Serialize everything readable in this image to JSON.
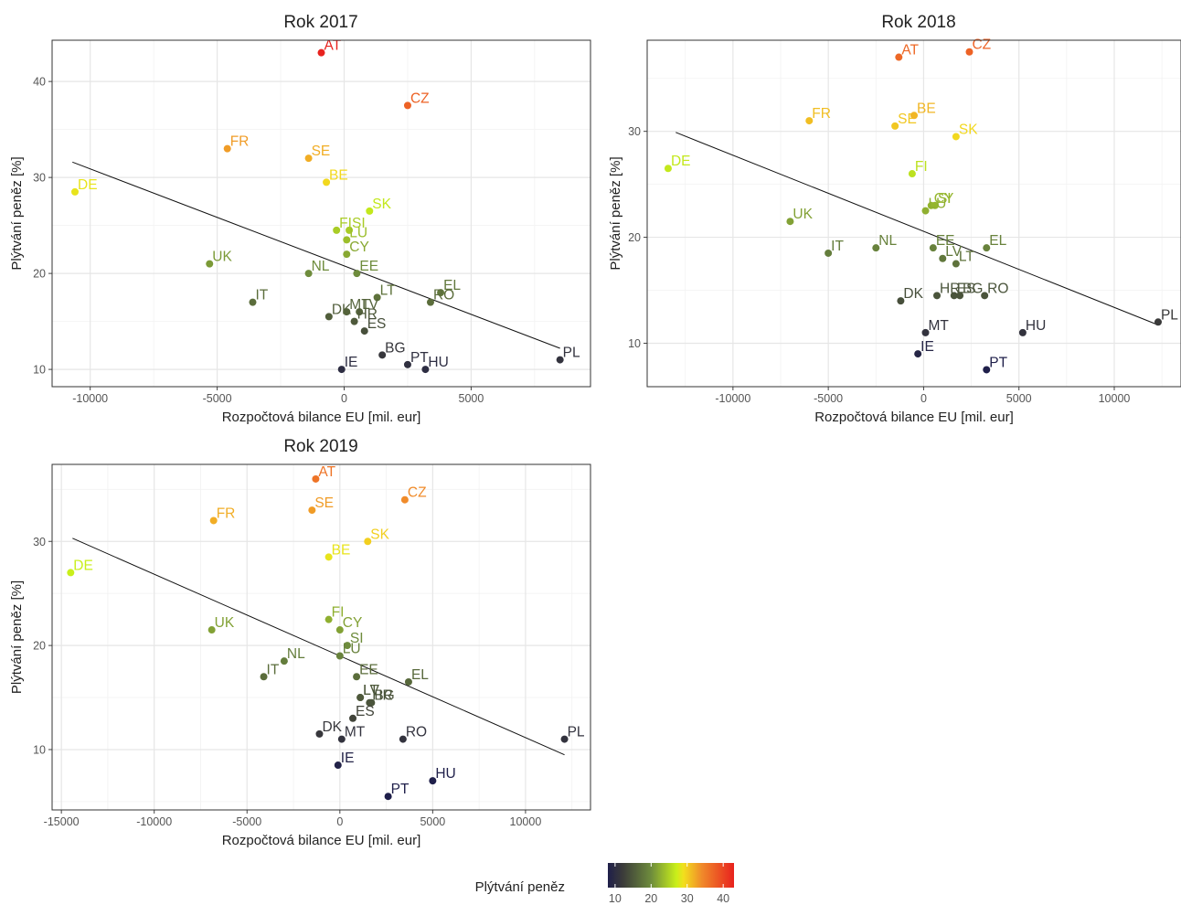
{
  "colorbar": {
    "title": "Plýtvání peněz",
    "ticks": [
      10,
      20,
      30,
      40
    ],
    "range": [
      8,
      43
    ],
    "stops": [
      {
        "v": 8,
        "c": "#1f1f4a"
      },
      {
        "v": 12,
        "c": "#3a3a3a"
      },
      {
        "v": 20,
        "c": "#6e8c3c"
      },
      {
        "v": 27,
        "c": "#c9ef1a"
      },
      {
        "v": 29,
        "c": "#f2e01d"
      },
      {
        "v": 34,
        "c": "#f08b2a"
      },
      {
        "v": 43,
        "c": "#e8221e"
      }
    ]
  },
  "chart_data": [
    {
      "type": "scatter",
      "title": "Rok 2017",
      "xlabel": "Rozpočtová bilance EU [mil. eur]",
      "ylabel": "Plýtvání peněz [%]",
      "xlim": [
        -11500,
        9700
      ],
      "ylim": [
        8.2,
        44.3
      ],
      "xticks": [
        -10000,
        -5000,
        0,
        5000
      ],
      "yticks": [
        10,
        20,
        30,
        40
      ],
      "regression": {
        "x1": -10700,
        "y1": 31.6,
        "x2": 8500,
        "y2": 12.2
      },
      "points": [
        {
          "label": "AT",
          "x": -900,
          "y": 43
        },
        {
          "label": "CZ",
          "x": 2500,
          "y": 37.5
        },
        {
          "label": "FR",
          "x": -4600,
          "y": 33
        },
        {
          "label": "SE",
          "x": -1400,
          "y": 32
        },
        {
          "label": "BE",
          "x": -700,
          "y": 29.5
        },
        {
          "label": "DE",
          "x": -10600,
          "y": 28.5
        },
        {
          "label": "SK",
          "x": 1000,
          "y": 26.5
        },
        {
          "label": "FI",
          "x": -300,
          "y": 24.5
        },
        {
          "label": "SI",
          "x": 200,
          "y": 24.5
        },
        {
          "label": "LU",
          "x": 100,
          "y": 23.5
        },
        {
          "label": "CY",
          "x": 100,
          "y": 22
        },
        {
          "label": "UK",
          "x": -5300,
          "y": 21
        },
        {
          "label": "NL",
          "x": -1400,
          "y": 20
        },
        {
          "label": "EE",
          "x": 500,
          "y": 20
        },
        {
          "label": "EL",
          "x": 3800,
          "y": 18
        },
        {
          "label": "RO",
          "x": 3400,
          "y": 17
        },
        {
          "label": "LT",
          "x": 1300,
          "y": 17.5
        },
        {
          "label": "IT",
          "x": -3600,
          "y": 17
        },
        {
          "label": "DK",
          "x": -600,
          "y": 15.5
        },
        {
          "label": "MT",
          "x": 100,
          "y": 16
        },
        {
          "label": "LV",
          "x": 600,
          "y": 16
        },
        {
          "label": "HR",
          "x": 400,
          "y": 15
        },
        {
          "label": "ES",
          "x": 800,
          "y": 14
        },
        {
          "label": "BG",
          "x": 1500,
          "y": 11.5
        },
        {
          "label": "PT",
          "x": 2500,
          "y": 10.5
        },
        {
          "label": "HU",
          "x": 3200,
          "y": 10
        },
        {
          "label": "IE",
          "x": -100,
          "y": 10
        },
        {
          "label": "PL",
          "x": 8500,
          "y": 11
        }
      ]
    },
    {
      "type": "scatter",
      "title": "Rok 2018",
      "xlabel": "Rozpočtová bilance EU [mil. eur]",
      "ylabel": "Plýtvání peněz [%]",
      "xlim": [
        -14500,
        13500
      ],
      "ylim": [
        5.9,
        38.6
      ],
      "xticks": [
        -10000,
        -5000,
        0,
        5000,
        10000
      ],
      "yticks": [
        10,
        20,
        30
      ],
      "regression": {
        "x1": -13000,
        "y1": 29.9,
        "x2": 12200,
        "y2": 11.8
      },
      "points": [
        {
          "label": "AT",
          "x": -1300,
          "y": 37
        },
        {
          "label": "CZ",
          "x": 2400,
          "y": 37.5
        },
        {
          "label": "FR",
          "x": -6000,
          "y": 31
        },
        {
          "label": "SE",
          "x": -1500,
          "y": 30.5
        },
        {
          "label": "BE",
          "x": -500,
          "y": 31.5
        },
        {
          "label": "SK",
          "x": 1700,
          "y": 29.5
        },
        {
          "label": "DE",
          "x": -13400,
          "y": 26.5
        },
        {
          "label": "FI",
          "x": -600,
          "y": 26
        },
        {
          "label": "SI",
          "x": 600,
          "y": 23
        },
        {
          "label": "CY",
          "x": 400,
          "y": 23
        },
        {
          "label": "LU",
          "x": 100,
          "y": 22.5
        },
        {
          "label": "UK",
          "x": -7000,
          "y": 21.5
        },
        {
          "label": "IT",
          "x": -5000,
          "y": 18.5
        },
        {
          "label": "NL",
          "x": -2500,
          "y": 19
        },
        {
          "label": "EE",
          "x": 500,
          "y": 19
        },
        {
          "label": "EL",
          "x": 3300,
          "y": 19
        },
        {
          "label": "LV",
          "x": 1000,
          "y": 18
        },
        {
          "label": "LT",
          "x": 1700,
          "y": 17.5
        },
        {
          "label": "DK",
          "x": -1200,
          "y": 14
        },
        {
          "label": "HR",
          "x": 700,
          "y": 14.5
        },
        {
          "label": "ES",
          "x": 1600,
          "y": 14.5
        },
        {
          "label": "BG",
          "x": 1900,
          "y": 14.5
        },
        {
          "label": "RO",
          "x": 3200,
          "y": 14.5
        },
        {
          "label": "MT",
          "x": 100,
          "y": 11
        },
        {
          "label": "HU",
          "x": 5200,
          "y": 11
        },
        {
          "label": "IE",
          "x": -300,
          "y": 9
        },
        {
          "label": "PT",
          "x": 3300,
          "y": 7.5
        },
        {
          "label": "PL",
          "x": 12300,
          "y": 12
        }
      ]
    },
    {
      "type": "scatter",
      "title": "Rok 2019",
      "xlabel": "Rozpočtová bilance EU [mil. eur]",
      "ylabel": "Plýtvání peněz [%]",
      "xlim": [
        -15500,
        13500
      ],
      "ylim": [
        4.2,
        37.4
      ],
      "xticks": [
        -15000,
        -10000,
        -5000,
        0,
        5000,
        10000
      ],
      "yticks": [
        10,
        20,
        30
      ],
      "regression": {
        "x1": -14400,
        "y1": 30.3,
        "x2": 12100,
        "y2": 9.5
      },
      "points": [
        {
          "label": "AT",
          "x": -1300,
          "y": 36
        },
        {
          "label": "CZ",
          "x": 3500,
          "y": 34
        },
        {
          "label": "SE",
          "x": -1500,
          "y": 33
        },
        {
          "label": "FR",
          "x": -6800,
          "y": 32
        },
        {
          "label": "SK",
          "x": 1500,
          "y": 30
        },
        {
          "label": "BE",
          "x": -600,
          "y": 28.5
        },
        {
          "label": "DE",
          "x": -14500,
          "y": 27
        },
        {
          "label": "FI",
          "x": -600,
          "y": 22.5
        },
        {
          "label": "CY",
          "x": 0,
          "y": 21.5
        },
        {
          "label": "UK",
          "x": -6900,
          "y": 21.5
        },
        {
          "label": "SI",
          "x": 400,
          "y": 20
        },
        {
          "label": "LU",
          "x": 0,
          "y": 19
        },
        {
          "label": "NL",
          "x": -3000,
          "y": 18.5
        },
        {
          "label": "IT",
          "x": -4100,
          "y": 17
        },
        {
          "label": "EE",
          "x": 900,
          "y": 17
        },
        {
          "label": "EL",
          "x": 3700,
          "y": 16.5
        },
        {
          "label": "LT",
          "x": 1100,
          "y": 15
        },
        {
          "label": "LV",
          "x": 1100,
          "y": 15
        },
        {
          "label": "HR",
          "x": 1600,
          "y": 14.5
        },
        {
          "label": "BG",
          "x": 1700,
          "y": 14.5
        },
        {
          "label": "ES",
          "x": 700,
          "y": 13
        },
        {
          "label": "DK",
          "x": -1100,
          "y": 11.5
        },
        {
          "label": "MT",
          "x": 100,
          "y": 11
        },
        {
          "label": "RO",
          "x": 3400,
          "y": 11
        },
        {
          "label": "PL",
          "x": 12100,
          "y": 11
        },
        {
          "label": "IE",
          "x": -100,
          "y": 8.5
        },
        {
          "label": "HU",
          "x": 5000,
          "y": 7
        },
        {
          "label": "PT",
          "x": 2600,
          "y": 5.5
        }
      ]
    }
  ]
}
